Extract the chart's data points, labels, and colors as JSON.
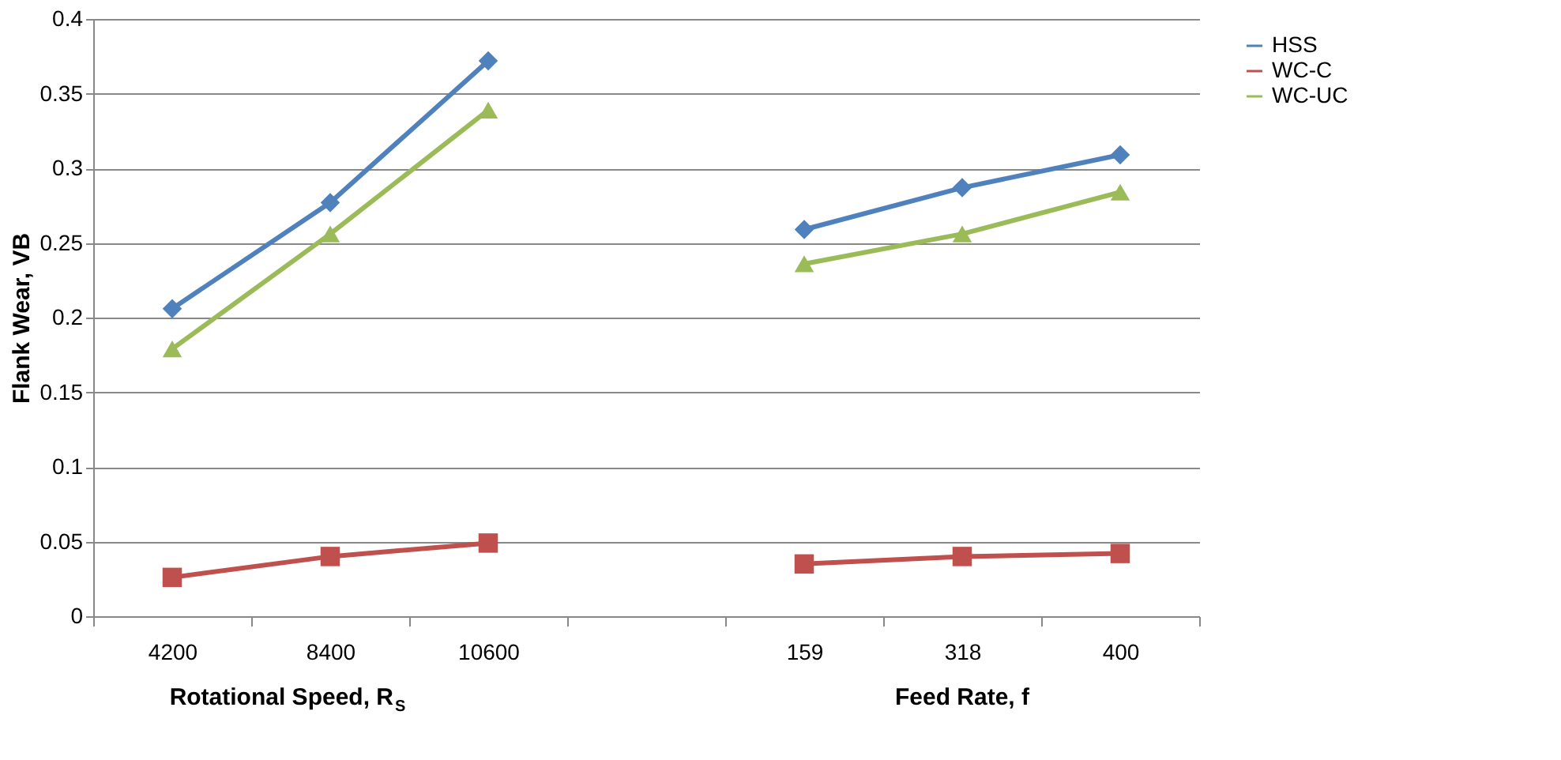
{
  "chart_data": {
    "type": "line",
    "ylabel": "Flank Wear, VB",
    "categories": [
      "4200",
      "8400",
      "10600",
      null,
      "159",
      "318",
      "400"
    ],
    "series": [
      {
        "name": "HSS",
        "color": "#4f81bd",
        "marker": "diamond",
        "values": [
          0.206,
          0.277,
          0.372,
          null,
          0.259,
          0.287,
          0.309
        ]
      },
      {
        "name": "WC-C",
        "color": "#c0504d",
        "marker": "square",
        "values": [
          0.026,
          0.04,
          0.049,
          null,
          0.035,
          0.04,
          0.042
        ]
      },
      {
        "name": "WC-UC",
        "color": "#9bbb59",
        "marker": "triangle",
        "values": [
          0.179,
          0.256,
          0.339,
          null,
          0.236,
          0.256,
          0.284
        ]
      }
    ],
    "ylim": [
      0,
      0.4
    ],
    "yticks": [
      0,
      0.05,
      0.1,
      0.15,
      0.2,
      0.25,
      0.3,
      0.35,
      0.4
    ],
    "grid": "y",
    "legend": "right",
    "annotations": [
      "Rotational  Speed, R$_{S}$",
      "Feed Rate, f"
    ]
  }
}
